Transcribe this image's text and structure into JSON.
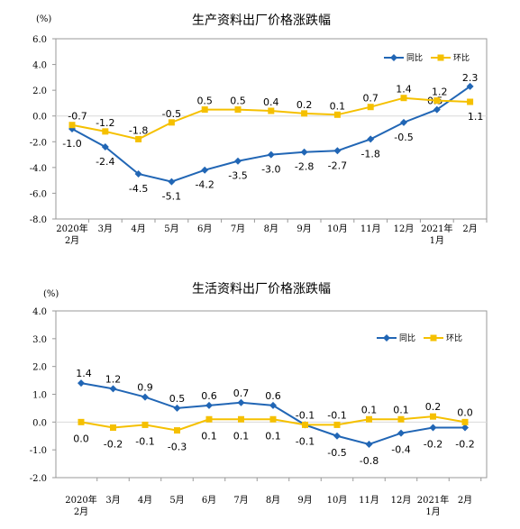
{
  "colors": {
    "yoy": "#2166b5",
    "mom": "#f5c000",
    "axis": "#999999",
    "grid": "#d9d9d9"
  },
  "chart_data": [
    {
      "type": "line",
      "title": "生产资料出厂价格涨跌幅",
      "unit": "(%)",
      "categories": [
        [
          "2020年",
          "2月"
        ],
        [
          "3月"
        ],
        [
          "4月"
        ],
        [
          "5月"
        ],
        [
          "6月"
        ],
        [
          "7月"
        ],
        [
          "8月"
        ],
        [
          "9月"
        ],
        [
          "10月"
        ],
        [
          "11月"
        ],
        [
          "12月"
        ],
        [
          "2021年",
          "1月"
        ],
        [
          "2月"
        ]
      ],
      "ylim": [
        -8,
        6
      ],
      "yticks": [
        "6.0",
        "4.0",
        "2.0",
        "0.0",
        "-2.0",
        "-4.0",
        "-6.0",
        "-8.0"
      ],
      "ytick_values": [
        6,
        4,
        2,
        0,
        -2,
        -4,
        -6,
        -8
      ],
      "legend_position": "top-right",
      "series": [
        {
          "name": "同比",
          "color_key": "yoy",
          "values": [
            -1.0,
            -2.4,
            -4.5,
            -5.1,
            -4.2,
            -3.5,
            -3.0,
            -2.8,
            -2.7,
            -1.8,
            -0.5,
            0.5,
            2.3
          ],
          "labels": [
            "-1.0",
            "-2.4",
            "-4.5",
            "-5.1",
            "-4.2",
            "-3.5",
            "-3.0",
            "-2.8",
            "-2.7",
            "-1.8",
            "-0.5",
            "0.5",
            "2.3"
          ]
        },
        {
          "name": "环比",
          "color_key": "mom",
          "values": [
            -0.7,
            -1.2,
            -1.8,
            -0.5,
            0.5,
            0.5,
            0.4,
            0.2,
            0.1,
            0.7,
            1.4,
            1.2,
            1.1
          ],
          "labels": [
            "-0.7",
            "-1.2",
            "-1.8",
            "-0.5",
            "0.5",
            "0.5",
            "0.4",
            "0.2",
            "0.1",
            "0.7",
            "1.4",
            "1.2",
            "1.1"
          ]
        }
      ]
    },
    {
      "type": "line",
      "title": "生活资料出厂价格涨跌幅",
      "unit": "(%)",
      "categories": [
        [
          "2020年",
          "2月"
        ],
        [
          "3月"
        ],
        [
          "4月"
        ],
        [
          "5月"
        ],
        [
          "6月"
        ],
        [
          "7月"
        ],
        [
          "8月"
        ],
        [
          "9月"
        ],
        [
          "10月"
        ],
        [
          "11月"
        ],
        [
          "12月"
        ],
        [
          "2021年",
          "1月"
        ],
        [
          "2月"
        ]
      ],
      "ylim": [
        -2,
        4
      ],
      "yticks": [
        "4.0",
        "3.0",
        "2.0",
        "1.0",
        "0.0",
        "-1.0",
        "-2.0"
      ],
      "ytick_values": [
        4,
        3,
        2,
        1,
        0,
        -1,
        -2
      ],
      "legend_position": "top-right",
      "series": [
        {
          "name": "同比",
          "color_key": "yoy",
          "values": [
            1.4,
            1.2,
            0.9,
            0.5,
            0.6,
            0.7,
            0.6,
            -0.1,
            -0.5,
            -0.8,
            -0.4,
            -0.2,
            -0.2
          ],
          "labels": [
            "1.4",
            "1.2",
            "0.9",
            "0.5",
            "0.6",
            "0.7",
            "0.6",
            "-0.1",
            "-0.5",
            "-0.8",
            "-0.4",
            "-0.2",
            "-0.2"
          ]
        },
        {
          "name": "环比",
          "color_key": "mom",
          "values": [
            0.0,
            -0.2,
            -0.1,
            -0.3,
            0.1,
            0.1,
            0.1,
            -0.1,
            -0.1,
            0.1,
            0.1,
            0.2,
            0.0
          ],
          "labels": [
            "0.0",
            "-0.2",
            "-0.1",
            "-0.3",
            "0.1",
            "0.1",
            "0.1",
            "-0.1",
            "-0.1",
            "0.1",
            "0.1",
            "0.2",
            "0.0"
          ]
        }
      ]
    }
  ]
}
